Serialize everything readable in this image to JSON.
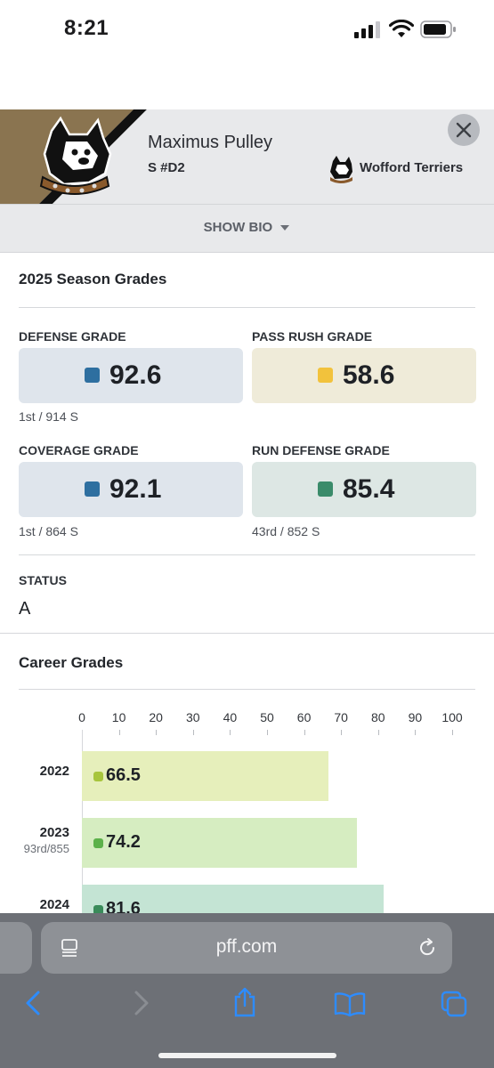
{
  "status_bar": {
    "time": "8:21"
  },
  "player": {
    "name": "Maximus Pulley",
    "position": "S #D2",
    "team": "Wofford Terriers",
    "show_bio": "SHOW BIO"
  },
  "season": {
    "title": "2025 Season Grades",
    "grades": [
      {
        "label": "DEFENSE GRADE",
        "value": "92.6",
        "rank": "1st / 914 S",
        "color": "#2e6fa0",
        "bg": "#dfe5ec"
      },
      {
        "label": "PASS RUSH GRADE",
        "value": "58.6",
        "rank": "",
        "color": "#f2c23c",
        "bg": "#efebd9"
      },
      {
        "label": "COVERAGE GRADE",
        "value": "92.1",
        "rank": "1st / 864 S",
        "color": "#2e6fa0",
        "bg": "#dfe5ec"
      },
      {
        "label": "RUN DEFENSE GRADE",
        "value": "85.4",
        "rank": "43rd / 852 S",
        "color": "#3a8b6a",
        "bg": "#dde7e4"
      }
    ],
    "status_label": "STATUS",
    "status_value": "A"
  },
  "career": {
    "title": "Career Grades",
    "chart_data": {
      "type": "bar",
      "orientation": "horizontal",
      "title": "Career Grades",
      "xlim": [
        0,
        100
      ],
      "ticks": [
        "0",
        "10",
        "20",
        "30",
        "40",
        "50",
        "60",
        "70",
        "80",
        "90",
        "100"
      ],
      "categories": [
        "2022",
        "2023",
        "2024"
      ],
      "category_ranks": [
        "",
        "93rd/855",
        ""
      ],
      "values": [
        66.5,
        74.2,
        81.6
      ],
      "value_labels": [
        "66.5",
        "74.2",
        "81.6"
      ],
      "bar_colors": [
        "#e6efbb",
        "#d6edc1",
        "#c4e4d4"
      ],
      "square_colors": [
        "#a7c53c",
        "#5cb14a",
        "#3a8b5a"
      ]
    }
  },
  "browser": {
    "url": "pff.com"
  }
}
